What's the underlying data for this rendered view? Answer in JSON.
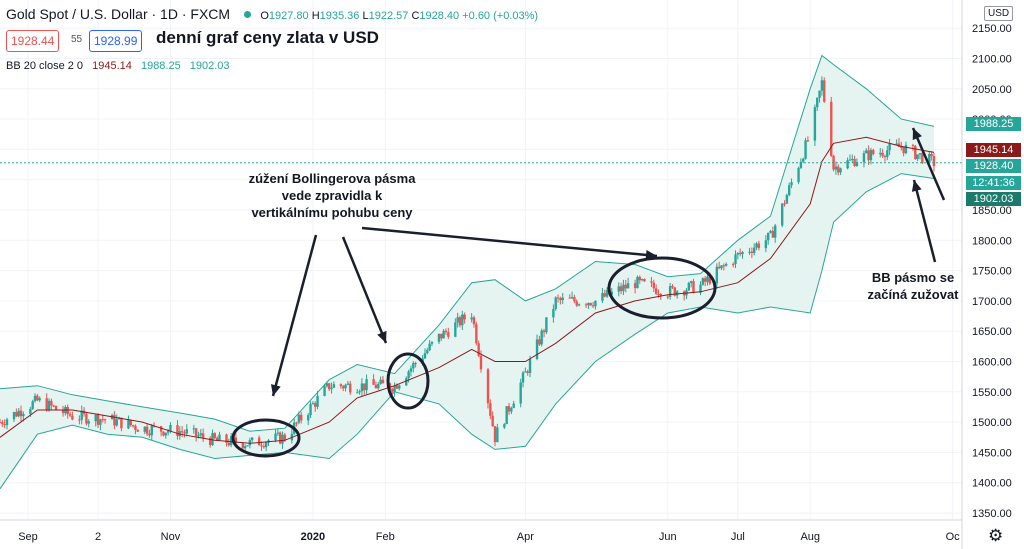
{
  "header": {
    "symbol": "Gold Spot / U.S. Dollar · 1D · FXCM",
    "open_label": "O",
    "open": "1927.80",
    "high_label": "H",
    "high": "1935.36",
    "low_label": "L",
    "low": "1922.57",
    "close_label": "C",
    "close": "1928.40",
    "change": "+0.60 (+0.03%)",
    "bid": "1928.44",
    "spread": "55",
    "ask": "1928.99",
    "currency": "USD"
  },
  "chart_title": "denní graf ceny zlata v USD",
  "indicator": {
    "label": "BB 20 close 2 0",
    "middle": "1945.14",
    "upper": "1988.25",
    "lower": "1902.03"
  },
  "price_tags": {
    "upper": "1988.25",
    "middle": "1945.14",
    "last": "1928.40",
    "countdown": "12:41:36",
    "lower": "1902.03"
  },
  "annotations": {
    "squeeze_note": "zúžení Bollingerova pásma\nvede zpravidla k\nvertikálnímu pohubu ceny",
    "narrowing_note": "BB pásmo se\nzačíná zužovat"
  },
  "colors": {
    "up": "#26a69a",
    "down": "#ef5350",
    "band_fill": "#e6f4f1",
    "band_line": "#26a69a",
    "basis": "#8b1a1a",
    "ask": "#2962ff"
  },
  "chart_data": {
    "type": "candlestick",
    "title": "denní graf ceny zlata v USD",
    "xlabel": "",
    "ylabel": "",
    "ylim": [
      1330,
      2160
    ],
    "yticks": [
      1350,
      1400,
      1450,
      1500,
      1550,
      1600,
      1650,
      1700,
      1750,
      1800,
      1850,
      1900,
      1950,
      2000,
      2050,
      2100,
      2150
    ],
    "xtick_labels": [
      "Sep",
      "2",
      "Nov",
      "2020",
      "Feb",
      "Apr",
      "Jun",
      "Jul",
      "Aug",
      "Oc"
    ],
    "x_range": [
      "2019-08-20",
      "2020-10-05"
    ],
    "xtick_dates": [
      "2019-09-01",
      "2019-10-01",
      "2019-11-01",
      "2020-01-01",
      "2020-02-01",
      "2020-04-01",
      "2020-06-01",
      "2020-07-01",
      "2020-08-01",
      "2020-10-01"
    ],
    "indicator": "Bollinger Bands (20, 2)",
    "series": [
      {
        "name": "Close",
        "dates": [
          "2019-08-20",
          "2019-09-05",
          "2019-09-20",
          "2019-10-05",
          "2019-10-20",
          "2019-11-05",
          "2019-11-20",
          "2019-12-05",
          "2019-12-20",
          "2020-01-08",
          "2020-01-20",
          "2020-02-05",
          "2020-02-24",
          "2020-03-09",
          "2020-03-19",
          "2020-04-01",
          "2020-04-14",
          "2020-05-01",
          "2020-05-18",
          "2020-06-01",
          "2020-06-15",
          "2020-07-01",
          "2020-07-15",
          "2020-08-01",
          "2020-08-06",
          "2020-08-11",
          "2020-08-25",
          "2020-09-09",
          "2020-09-23"
        ],
        "values": [
          1500,
          1535,
          1510,
          1505,
          1490,
          1485,
          1470,
          1465,
          1475,
          1560,
          1560,
          1560,
          1640,
          1680,
          1475,
          1580,
          1700,
          1700,
          1730,
          1715,
          1725,
          1775,
          1805,
          1975,
          2060,
          1920,
          1940,
          1955,
          1928
        ]
      },
      {
        "name": "BB upper",
        "values": [
          1555,
          1560,
          1545,
          1535,
          1525,
          1515,
          1505,
          1485,
          1490,
          1570,
          1595,
          1580,
          1660,
          1730,
          1735,
          1700,
          1720,
          1765,
          1760,
          1740,
          1745,
          1800,
          1840,
          2050,
          2105,
          2090,
          2050,
          2000,
          1988
        ]
      },
      {
        "name": "BB basis",
        "values": [
          1475,
          1520,
          1520,
          1510,
          1500,
          1480,
          1470,
          1465,
          1470,
          1500,
          1540,
          1560,
          1590,
          1620,
          1600,
          1600,
          1630,
          1680,
          1700,
          1710,
          1715,
          1730,
          1770,
          1860,
          1930,
          1960,
          1970,
          1955,
          1945
        ]
      },
      {
        "name": "BB lower",
        "values": [
          1390,
          1480,
          1495,
          1480,
          1475,
          1455,
          1440,
          1445,
          1450,
          1440,
          1480,
          1550,
          1530,
          1480,
          1455,
          1460,
          1530,
          1600,
          1645,
          1680,
          1690,
          1680,
          1690,
          1680,
          1750,
          1830,
          1880,
          1910,
          1902
        ]
      }
    ]
  }
}
